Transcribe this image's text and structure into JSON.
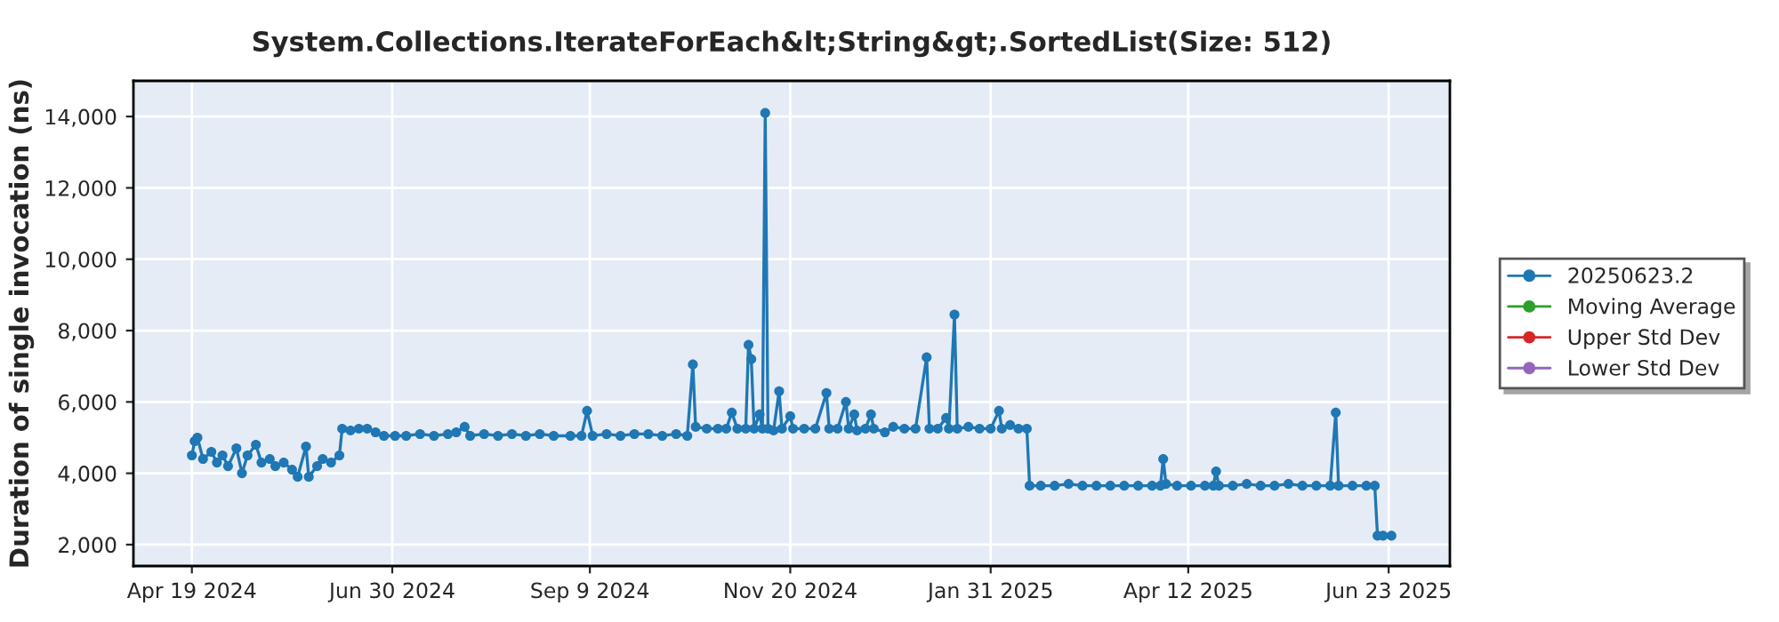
{
  "chart_data": {
    "type": "line",
    "title": "System.Collections.IterateForEach&lt;String&gt;.SortedList(Size: 512)",
    "ylabel": "Duration of single invocation (ns)",
    "x": [
      "2024-04-19",
      "2024-04-20",
      "2024-04-21",
      "2024-04-23",
      "2024-04-26",
      "2024-04-28",
      "2024-04-30",
      "2024-05-02",
      "2024-05-05",
      "2024-05-07",
      "2024-05-09",
      "2024-05-12",
      "2024-05-14",
      "2024-05-17",
      "2024-05-19",
      "2024-05-22",
      "2024-05-25",
      "2024-05-27",
      "2024-05-30",
      "2024-05-31",
      "2024-06-03",
      "2024-06-05",
      "2024-06-08",
      "2024-06-11",
      "2024-06-12",
      "2024-06-15",
      "2024-06-18",
      "2024-06-21",
      "2024-06-24",
      "2024-06-27",
      "2024-07-01",
      "2024-07-05",
      "2024-07-10",
      "2024-07-15",
      "2024-07-20",
      "2024-07-23",
      "2024-07-26",
      "2024-07-28",
      "2024-08-02",
      "2024-08-07",
      "2024-08-12",
      "2024-08-17",
      "2024-08-22",
      "2024-08-27",
      "2024-09-02",
      "2024-09-06",
      "2024-09-08",
      "2024-09-10",
      "2024-09-15",
      "2024-09-20",
      "2024-09-25",
      "2024-09-30",
      "2024-10-05",
      "2024-10-10",
      "2024-10-14",
      "2024-10-16",
      "2024-10-17",
      "2024-10-21",
      "2024-10-25",
      "2024-10-28",
      "2024-10-30",
      "2024-11-01",
      "2024-11-04",
      "2024-11-05",
      "2024-11-06",
      "2024-11-07",
      "2024-11-09",
      "2024-11-10",
      "2024-11-11",
      "2024-11-12",
      "2024-11-14",
      "2024-11-16",
      "2024-11-17",
      "2024-11-20",
      "2024-11-21",
      "2024-11-25",
      "2024-11-29",
      "2024-12-03",
      "2024-12-04",
      "2024-12-07",
      "2024-12-10",
      "2024-12-11",
      "2024-12-13",
      "2024-12-14",
      "2024-12-17",
      "2024-12-19",
      "2024-12-20",
      "2024-12-24",
      "2024-12-27",
      "2024-12-31",
      "2025-01-04",
      "2025-01-08",
      "2025-01-09",
      "2025-01-12",
      "2025-01-15",
      "2025-01-16",
      "2025-01-18",
      "2025-01-19",
      "2025-01-23",
      "2025-01-27",
      "2025-01-31",
      "2025-02-03",
      "2025-02-04",
      "2025-02-07",
      "2025-02-10",
      "2025-02-13",
      "2025-02-14",
      "2025-02-18",
      "2025-02-23",
      "2025-02-28",
      "2025-03-05",
      "2025-03-10",
      "2025-03-15",
      "2025-03-20",
      "2025-03-25",
      "2025-03-30",
      "2025-04-02",
      "2025-04-03",
      "2025-04-04",
      "2025-04-08",
      "2025-04-13",
      "2025-04-18",
      "2025-04-21",
      "2025-04-22",
      "2025-04-23",
      "2025-04-28",
      "2025-05-03",
      "2025-05-08",
      "2025-05-13",
      "2025-05-18",
      "2025-05-23",
      "2025-05-28",
      "2025-06-02",
      "2025-06-04",
      "2025-06-05",
      "2025-06-10",
      "2025-06-15",
      "2025-06-18",
      "2025-06-19",
      "2025-06-21",
      "2025-06-24"
    ],
    "series": [
      {
        "name": "20250623.2",
        "color": "#1f77b4",
        "values": [
          4500,
          4900,
          5000,
          4400,
          4600,
          4300,
          4500,
          4200,
          4700,
          4000,
          4500,
          4800,
          4300,
          4400,
          4200,
          4300,
          4100,
          3900,
          4750,
          3900,
          4200,
          4400,
          4300,
          4500,
          5250,
          5200,
          5250,
          5250,
          5150,
          5050,
          5050,
          5050,
          5100,
          5050,
          5100,
          5150,
          5300,
          5050,
          5100,
          5050,
          5100,
          5050,
          5100,
          5050,
          5050,
          5050,
          5750,
          5050,
          5100,
          5050,
          5100,
          5100,
          5050,
          5100,
          5050,
          7050,
          5300,
          5250,
          5250,
          5250,
          5700,
          5250,
          5250,
          7600,
          7200,
          5250,
          5650,
          5250,
          14100,
          5250,
          5200,
          6300,
          5250,
          5600,
          5250,
          5250,
          5250,
          6250,
          5250,
          5250,
          6000,
          5250,
          5650,
          5200,
          5250,
          5650,
          5250,
          5150,
          5300,
          5250,
          5250,
          7250,
          5250,
          5250,
          5550,
          5250,
          8450,
          5250,
          5300,
          5250,
          5250,
          5750,
          5250,
          5350,
          5250,
          5250,
          3650,
          3650,
          3650,
          3700,
          3650,
          3650,
          3650,
          3650,
          3650,
          3650,
          3650,
          4400,
          3700,
          3650,
          3650,
          3650,
          3650,
          4050,
          3650,
          3650,
          3700,
          3650,
          3650,
          3700,
          3650,
          3650,
          3650,
          5700,
          3650,
          3650,
          3650,
          3650,
          2250,
          2250,
          2250
        ]
      },
      {
        "name": "Moving Average",
        "color": "#2ca02c",
        "values": [
          null,
          null,
          null,
          null,
          null,
          null,
          null,
          null,
          null,
          null,
          null,
          null,
          null,
          null,
          null,
          null,
          null,
          null,
          null,
          null,
          null,
          null,
          null,
          null,
          null,
          null,
          null,
          null,
          null,
          null,
          null,
          null,
          null,
          null,
          null,
          null,
          null,
          null,
          null,
          null,
          null,
          null,
          null,
          null,
          null,
          null,
          null,
          null,
          null,
          null,
          null,
          null,
          null,
          null,
          null,
          null,
          null,
          null,
          null,
          null,
          null,
          null,
          null,
          null,
          null,
          null,
          null,
          null,
          null,
          null,
          null,
          null,
          null,
          null,
          null,
          null,
          null,
          null,
          null,
          null,
          null,
          null,
          null,
          null,
          null,
          null,
          null,
          null,
          null,
          null,
          null,
          null,
          null,
          null,
          null,
          null,
          null,
          null,
          null,
          null,
          null,
          null,
          null,
          null,
          null,
          null,
          null,
          null,
          null,
          null,
          null,
          null,
          null,
          null,
          null,
          null,
          null,
          null,
          null,
          null,
          null,
          null,
          null,
          null,
          null,
          null,
          null,
          null,
          null,
          null,
          null,
          null,
          null,
          null,
          null,
          null,
          null,
          null,
          null,
          null,
          null
        ]
      },
      {
        "name": "Upper Std Dev",
        "color": "#d62728",
        "values": [
          null,
          null,
          null,
          null,
          null,
          null,
          null,
          null,
          null,
          null,
          null,
          null,
          null,
          null,
          null,
          null,
          null,
          null,
          null,
          null,
          null,
          null,
          null,
          null,
          null,
          null,
          null,
          null,
          null,
          null,
          null,
          null,
          null,
          null,
          null,
          null,
          null,
          null,
          null,
          null,
          null,
          null,
          null,
          null,
          null,
          null,
          null,
          null,
          null,
          null,
          null,
          null,
          null,
          null,
          null,
          null,
          null,
          null,
          null,
          null,
          null,
          null,
          null,
          null,
          null,
          null,
          null,
          null,
          null,
          null,
          null,
          null,
          null,
          null,
          null,
          null,
          null,
          null,
          null,
          null,
          null,
          null,
          null,
          null,
          null,
          null,
          null,
          null,
          null,
          null,
          null,
          null,
          null,
          null,
          null,
          null,
          null,
          null,
          null,
          null,
          null,
          null,
          null,
          null,
          null,
          null,
          null,
          null,
          null,
          null,
          null,
          null,
          null,
          null,
          null,
          null,
          null,
          null,
          null,
          null,
          null,
          null,
          null,
          null,
          null,
          null,
          null,
          null,
          null,
          null,
          null,
          null,
          null,
          null,
          null,
          null,
          null,
          null,
          null,
          null,
          null
        ]
      },
      {
        "name": "Lower Std Dev",
        "color": "#9467bd",
        "values": [
          null,
          null,
          null,
          null,
          null,
          null,
          null,
          null,
          null,
          null,
          null,
          null,
          null,
          null,
          null,
          null,
          null,
          null,
          null,
          null,
          null,
          null,
          null,
          null,
          null,
          null,
          null,
          null,
          null,
          null,
          null,
          null,
          null,
          null,
          null,
          null,
          null,
          null,
          null,
          null,
          null,
          null,
          null,
          null,
          null,
          null,
          null,
          null,
          null,
          null,
          null,
          null,
          null,
          null,
          null,
          null,
          null,
          null,
          null,
          null,
          null,
          null,
          null,
          null,
          null,
          null,
          null,
          null,
          null,
          null,
          null,
          null,
          null,
          null,
          null,
          null,
          null,
          null,
          null,
          null,
          null,
          null,
          null,
          null,
          null,
          null,
          null,
          null,
          null,
          null,
          null,
          null,
          null,
          null,
          null,
          null,
          null,
          null,
          null,
          null,
          null,
          null,
          null,
          null,
          null,
          null,
          null,
          null,
          null,
          null,
          null,
          null,
          null,
          null,
          null,
          null,
          null,
          null,
          null,
          null,
          null,
          null,
          null,
          null,
          null,
          null,
          null,
          null,
          null,
          null,
          null,
          null,
          null,
          null,
          null,
          null,
          null,
          null,
          null,
          null,
          null
        ]
      }
    ],
    "xlim": [
      "2024-03-29",
      "2025-07-15"
    ],
    "xticks": [
      {
        "value": "2024-04-19",
        "label": "Apr 19 2024"
      },
      {
        "value": "2024-06-30",
        "label": "Jun 30 2024"
      },
      {
        "value": "2024-09-09",
        "label": "Sep 9 2024"
      },
      {
        "value": "2024-11-20",
        "label": "Nov 20 2024"
      },
      {
        "value": "2025-01-31",
        "label": "Jan 31 2025"
      },
      {
        "value": "2025-04-12",
        "label": "Apr 12 2025"
      },
      {
        "value": "2025-06-23",
        "label": "Jun 23 2025"
      }
    ],
    "ylim": [
      1400,
      15000
    ],
    "yticks": [
      {
        "value": 2000,
        "label": "2,000"
      },
      {
        "value": 4000,
        "label": "4,000"
      },
      {
        "value": 6000,
        "label": "6,000"
      },
      {
        "value": 8000,
        "label": "8,000"
      },
      {
        "value": 10000,
        "label": "10,000"
      },
      {
        "value": 12000,
        "label": "12,000"
      },
      {
        "value": 14000,
        "label": "14,000"
      }
    ],
    "grid": true,
    "legend": "right",
    "marker": "circle",
    "line_style": "solid"
  }
}
